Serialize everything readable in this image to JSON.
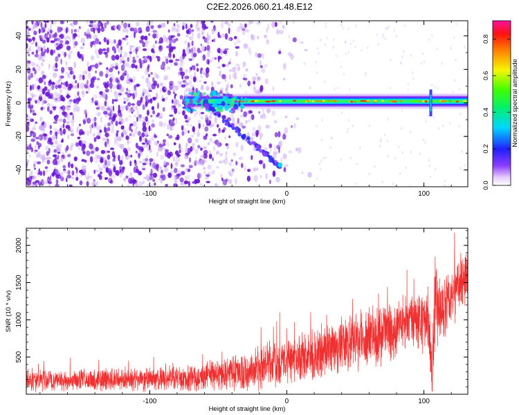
{
  "title": "C2E2.2026.060.21.48.E12",
  "colors": {
    "snr_line": "#f03030",
    "noise_dots": "#6a14d8",
    "axis": "#000000"
  },
  "chart_data": [
    {
      "type": "heatmap",
      "xlabel": "Height of straight line (km)",
      "ylabel": "Frequency (Hz)",
      "xlim": [
        -190,
        132
      ],
      "ylim": [
        -50,
        49
      ],
      "xticks": [
        {
          "value": -100,
          "label": "-100"
        },
        {
          "value": 0,
          "label": "0"
        },
        {
          "value": 100,
          "label": "100"
        }
      ],
      "yticks": [
        {
          "value": -40,
          "label": "-40"
        },
        {
          "value": -20,
          "label": "-20"
        },
        {
          "value": 0,
          "label": "0"
        },
        {
          "value": 20,
          "label": "20"
        },
        {
          "value": 40,
          "label": "40"
        }
      ],
      "colorbar": {
        "label": "Normalized spectral amplitude",
        "range": [
          0.0,
          0.9
        ],
        "ticks": [
          {
            "value": 0.0,
            "label": "0.0"
          },
          {
            "value": 0.2,
            "label": "0.2"
          },
          {
            "value": 0.4,
            "label": "0.4"
          },
          {
            "value": 0.6,
            "label": "0.6"
          },
          {
            "value": 0.8,
            "label": "0.8"
          }
        ],
        "colormap": "rainbow (white, violet, blue, cyan, green, yellow, red, magenta)"
      },
      "features": {
        "noise_band_x": [
          -190,
          -20
        ],
        "carrier_trace": {
          "x": [
            -75,
            132
          ],
          "frequency_hz": 1,
          "peak_amplitude": 0.85
        },
        "descending_branch": {
          "x": [
            -60,
            -5
          ],
          "frequency_hz": [
            0,
            -38
          ]
        },
        "spike_at_x": 105
      }
    },
    {
      "type": "line",
      "xlabel": "Height of straight line (km)",
      "ylabel": "SNR (10 * v/v)",
      "xlim": [
        -190,
        132
      ],
      "ylim": [
        0,
        2230
      ],
      "xticks": [
        {
          "value": -100,
          "label": "-100"
        },
        {
          "value": 0,
          "label": "0"
        },
        {
          "value": 100,
          "label": "100"
        }
      ],
      "yticks": [
        {
          "value": 500,
          "label": "500"
        },
        {
          "value": 1000,
          "label": "1000"
        },
        {
          "value": 1500,
          "label": "1500"
        },
        {
          "value": 2000,
          "label": "2000"
        }
      ],
      "series": [
        {
          "x": [
            -190,
            -160,
            -130,
            -100,
            -70,
            -50,
            -30,
            -10,
            0,
            20,
            40,
            60,
            80,
            95,
            103,
            106,
            108,
            110,
            115,
            125,
            132
          ],
          "mean": [
            180,
            185,
            190,
            200,
            220,
            260,
            320,
            400,
            450,
            550,
            650,
            760,
            900,
            1000,
            1000,
            250,
            1300,
            1150,
            1150,
            1450,
            1700
          ],
          "spread": [
            180,
            180,
            180,
            190,
            200,
            260,
            320,
            360,
            380,
            420,
            440,
            460,
            480,
            480,
            500,
            500,
            900,
            600,
            460,
            460,
            460
          ]
        }
      ]
    }
  ]
}
